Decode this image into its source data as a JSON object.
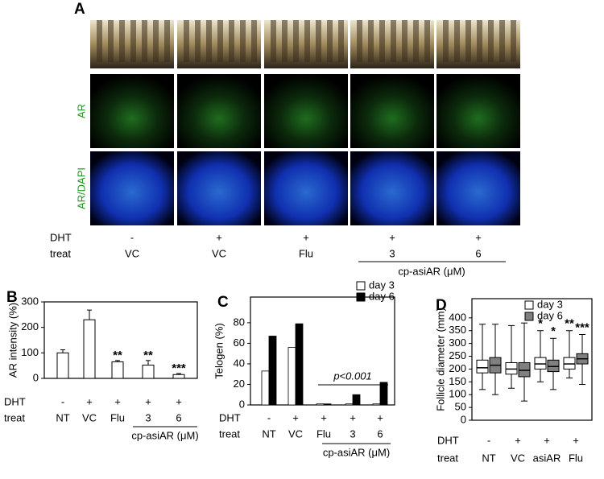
{
  "panel_a": {
    "label": "A",
    "row_labels": [
      "AR",
      "AR/DAPI"
    ],
    "dht_label": "DHT",
    "dht": [
      "-",
      "+",
      "+",
      "+",
      "+"
    ],
    "treat_label": "treat",
    "treat": [
      "VC",
      "VC",
      "Flu",
      "3",
      "6"
    ],
    "group_label": "cp-asiAR (μM)"
  },
  "chart_data": [
    {
      "type": "bar",
      "panel": "B",
      "y_label": "AR intensity (%)",
      "categories": [
        "NT",
        "VC",
        "Flu",
        "3",
        "6"
      ],
      "values": [
        100,
        230,
        65,
        52,
        15
      ],
      "errors": [
        12,
        38,
        5,
        18,
        4
      ],
      "significance": [
        null,
        null,
        "**",
        "**",
        "***"
      ],
      "color": "#ffffff",
      "ylim": [
        0,
        300
      ],
      "yticks": [
        0,
        100,
        200,
        300
      ],
      "dht_label": "DHT",
      "dht": [
        "-",
        "+",
        "+",
        "+",
        "+"
      ],
      "treat_label": "treat",
      "group_label": "cp-asiAR (μM)"
    },
    {
      "type": "grouped_bar",
      "panel": "C",
      "y_label": "Telogen (%)",
      "categories": [
        "NT",
        "VC",
        "Flu",
        "3",
        "6"
      ],
      "series": [
        {
          "name": "day 3",
          "color": "#ffffff",
          "values": [
            33,
            56,
            1,
            1,
            1
          ]
        },
        {
          "name": "day 6",
          "color": "#000000",
          "values": [
            67,
            79,
            1,
            10,
            22
          ]
        }
      ],
      "annotation": "p<0.001",
      "ylim": [
        0,
        105
      ],
      "yticks": [
        0,
        20,
        40,
        60,
        80
      ],
      "dht_label": "DHT",
      "dht": [
        "-",
        "+",
        "+",
        "+",
        "+"
      ],
      "treat_label": "treat",
      "group_label": "cp-asiAR (μM)"
    },
    {
      "type": "box",
      "panel": "D",
      "y_label": "Follicle diameter (mm)",
      "categories": [
        "NT",
        "VC",
        "asiAR",
        "Flu"
      ],
      "series": [
        {
          "name": "day 3",
          "color": "#ffffff",
          "values": [
            [
              120,
              185,
              205,
              235,
              375
            ],
            [
              125,
              180,
              200,
              225,
              370
            ],
            [
              150,
              200,
              220,
              245,
              350
            ],
            [
              165,
              200,
              220,
              245,
              350
            ]
          ],
          "significance": [
            null,
            null,
            "*",
            "**"
          ]
        },
        {
          "name": "day 6",
          "color": "#808080",
          "values": [
            [
              100,
              185,
              215,
              245,
              375
            ],
            [
              75,
              170,
              195,
              225,
              380
            ],
            [
              120,
              190,
              210,
              235,
              320
            ],
            [
              140,
              220,
              240,
              260,
              335
            ]
          ],
          "significance": [
            null,
            null,
            "*",
            "***"
          ]
        }
      ],
      "ylim": [
        0,
        475
      ],
      "yticks": [
        0,
        50,
        100,
        150,
        200,
        250,
        300,
        350,
        400
      ],
      "dht_label": "DHT",
      "dht": [
        "-",
        "+",
        "+",
        "+"
      ],
      "treat_label": "treat"
    }
  ]
}
